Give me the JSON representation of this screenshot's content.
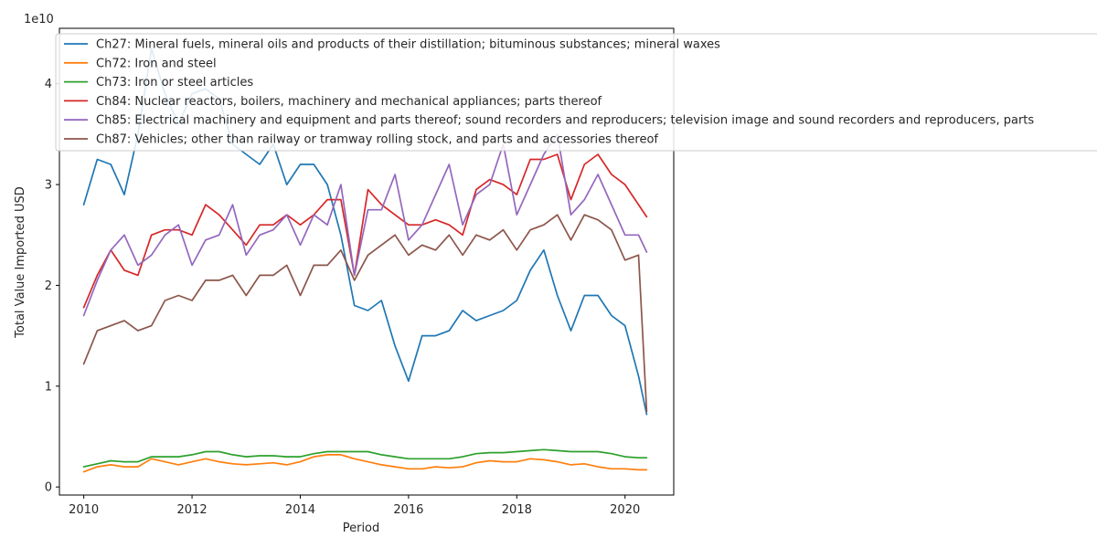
{
  "chart_data": {
    "type": "line",
    "title": "",
    "xlabel": "Period",
    "ylabel": "Total Value Imported USD",
    "y_scale_label": "1e10",
    "xlim": [
      2009.55,
      2020.9
    ],
    "ylim": [
      -0.08,
      4.55
    ],
    "x_ticks": [
      2010,
      2012,
      2014,
      2016,
      2018,
      2020
    ],
    "x_tick_labels": [
      "2010",
      "2012",
      "2014",
      "2016",
      "2018",
      "2020"
    ],
    "y_ticks": [
      0,
      1,
      2,
      3,
      4
    ],
    "y_tick_labels": [
      "0",
      "1",
      "2",
      "3",
      "4"
    ],
    "grid": false,
    "legend_position": "upper-left",
    "series": [
      {
        "name": "Ch27: Mineral fuels, mineral oils and products of their distillation; bituminous substances; mineral waxes",
        "color": "#1f77b4",
        "x": [
          2010.0,
          2010.25,
          2010.5,
          2010.75,
          2011.0,
          2011.25,
          2011.5,
          2011.75,
          2012.0,
          2012.25,
          2012.5,
          2012.75,
          2013.0,
          2013.25,
          2013.5,
          2013.75,
          2014.0,
          2014.25,
          2014.5,
          2014.75,
          2015.0,
          2015.25,
          2015.5,
          2015.75,
          2016.0,
          2016.25,
          2016.5,
          2016.75,
          2017.0,
          2017.25,
          2017.5,
          2017.75,
          2018.0,
          2018.25,
          2018.5,
          2018.75,
          2019.0,
          2019.25,
          2019.5,
          2019.75,
          2020.0,
          2020.25,
          2020.4
        ],
        "values": [
          2.8,
          3.25,
          3.2,
          2.9,
          3.5,
          4.35,
          3.9,
          3.6,
          3.9,
          3.95,
          3.85,
          3.4,
          3.3,
          3.2,
          3.4,
          3.0,
          3.2,
          3.2,
          3.0,
          2.5,
          1.8,
          1.75,
          1.85,
          1.4,
          1.05,
          1.5,
          1.5,
          1.55,
          1.75,
          1.65,
          1.7,
          1.75,
          1.85,
          2.15,
          2.35,
          1.9,
          1.55,
          1.9,
          1.9,
          1.7,
          1.6,
          1.1,
          0.72
        ]
      },
      {
        "name": "Ch72: Iron and steel",
        "color": "#ff7f0e",
        "x": [
          2010.0,
          2010.25,
          2010.5,
          2010.75,
          2011.0,
          2011.25,
          2011.5,
          2011.75,
          2012.0,
          2012.25,
          2012.5,
          2012.75,
          2013.0,
          2013.25,
          2013.5,
          2013.75,
          2014.0,
          2014.25,
          2014.5,
          2014.75,
          2015.0,
          2015.25,
          2015.5,
          2015.75,
          2016.0,
          2016.25,
          2016.5,
          2016.75,
          2017.0,
          2017.25,
          2017.5,
          2017.75,
          2018.0,
          2018.25,
          2018.5,
          2018.75,
          2019.0,
          2019.25,
          2019.5,
          2019.75,
          2020.0,
          2020.25,
          2020.4
        ],
        "values": [
          0.15,
          0.2,
          0.22,
          0.2,
          0.2,
          0.28,
          0.25,
          0.22,
          0.25,
          0.28,
          0.25,
          0.23,
          0.22,
          0.23,
          0.24,
          0.22,
          0.25,
          0.3,
          0.32,
          0.32,
          0.28,
          0.25,
          0.22,
          0.2,
          0.18,
          0.18,
          0.2,
          0.19,
          0.2,
          0.24,
          0.26,
          0.25,
          0.25,
          0.28,
          0.27,
          0.25,
          0.22,
          0.23,
          0.2,
          0.18,
          0.18,
          0.17,
          0.17
        ]
      },
      {
        "name": "Ch73: Iron or steel articles",
        "color": "#2ca02c",
        "x": [
          2010.0,
          2010.25,
          2010.5,
          2010.75,
          2011.0,
          2011.25,
          2011.5,
          2011.75,
          2012.0,
          2012.25,
          2012.5,
          2012.75,
          2013.0,
          2013.25,
          2013.5,
          2013.75,
          2014.0,
          2014.25,
          2014.5,
          2014.75,
          2015.0,
          2015.25,
          2015.5,
          2015.75,
          2016.0,
          2016.25,
          2016.5,
          2016.75,
          2017.0,
          2017.25,
          2017.5,
          2017.75,
          2018.0,
          2018.25,
          2018.5,
          2018.75,
          2019.0,
          2019.25,
          2019.5,
          2019.75,
          2020.0,
          2020.25,
          2020.4
        ],
        "values": [
          0.2,
          0.23,
          0.26,
          0.25,
          0.25,
          0.3,
          0.3,
          0.3,
          0.32,
          0.35,
          0.35,
          0.32,
          0.3,
          0.31,
          0.31,
          0.3,
          0.3,
          0.33,
          0.35,
          0.35,
          0.35,
          0.35,
          0.32,
          0.3,
          0.28,
          0.28,
          0.28,
          0.28,
          0.3,
          0.33,
          0.34,
          0.34,
          0.35,
          0.36,
          0.37,
          0.36,
          0.35,
          0.35,
          0.35,
          0.33,
          0.3,
          0.29,
          0.29
        ]
      },
      {
        "name": "Ch84: Nuclear reactors, boilers, machinery and mechanical appliances; parts thereof",
        "color": "#d62728",
        "x": [
          2010.0,
          2010.25,
          2010.5,
          2010.75,
          2011.0,
          2011.25,
          2011.5,
          2011.75,
          2012.0,
          2012.25,
          2012.5,
          2012.75,
          2013.0,
          2013.25,
          2013.5,
          2013.75,
          2014.0,
          2014.25,
          2014.5,
          2014.75,
          2015.0,
          2015.25,
          2015.5,
          2015.75,
          2016.0,
          2016.25,
          2016.5,
          2016.75,
          2017.0,
          2017.25,
          2017.5,
          2017.75,
          2018.0,
          2018.25,
          2018.5,
          2018.75,
          2019.0,
          2019.25,
          2019.5,
          2019.75,
          2020.0,
          2020.25,
          2020.4
        ],
        "values": [
          1.78,
          2.1,
          2.35,
          2.15,
          2.1,
          2.5,
          2.55,
          2.55,
          2.5,
          2.8,
          2.7,
          2.55,
          2.4,
          2.6,
          2.6,
          2.7,
          2.6,
          2.7,
          2.85,
          2.85,
          2.1,
          2.95,
          2.8,
          2.7,
          2.6,
          2.6,
          2.65,
          2.6,
          2.5,
          2.95,
          3.05,
          3.0,
          2.9,
          3.25,
          3.25,
          3.3,
          2.85,
          3.2,
          3.3,
          3.1,
          3.0,
          2.8,
          2.68
        ]
      },
      {
        "name": "Ch85: Electrical machinery and equipment and parts thereof; sound recorders and reproducers; television image and sound recorders and reproducers, parts",
        "color": "#9467bd",
        "x": [
          2010.0,
          2010.25,
          2010.5,
          2010.75,
          2011.0,
          2011.25,
          2011.5,
          2011.75,
          2012.0,
          2012.25,
          2012.5,
          2012.75,
          2013.0,
          2013.25,
          2013.5,
          2013.75,
          2014.0,
          2014.25,
          2014.5,
          2014.75,
          2015.0,
          2015.25,
          2015.5,
          2015.75,
          2016.0,
          2016.25,
          2016.5,
          2016.75,
          2017.0,
          2017.25,
          2017.5,
          2017.75,
          2018.0,
          2018.25,
          2018.5,
          2018.75,
          2019.0,
          2019.25,
          2019.5,
          2019.75,
          2020.0,
          2020.25,
          2020.4
        ],
        "values": [
          1.7,
          2.05,
          2.35,
          2.5,
          2.2,
          2.3,
          2.5,
          2.6,
          2.2,
          2.45,
          2.5,
          2.8,
          2.3,
          2.5,
          2.55,
          2.7,
          2.4,
          2.7,
          2.6,
          3.0,
          2.1,
          2.75,
          2.75,
          3.1,
          2.45,
          2.6,
          2.9,
          3.2,
          2.6,
          2.9,
          3.0,
          3.4,
          2.7,
          3.0,
          3.3,
          3.5,
          2.7,
          2.85,
          3.1,
          2.8,
          2.5,
          2.5,
          2.33
        ]
      },
      {
        "name": "Ch87: Vehicles; other than railway or tramway rolling stock, and parts and accessories thereof",
        "color": "#8c564b",
        "x": [
          2010.0,
          2010.25,
          2010.5,
          2010.75,
          2011.0,
          2011.25,
          2011.5,
          2011.75,
          2012.0,
          2012.25,
          2012.5,
          2012.75,
          2013.0,
          2013.25,
          2013.5,
          2013.75,
          2014.0,
          2014.25,
          2014.5,
          2014.75,
          2015.0,
          2015.25,
          2015.5,
          2015.75,
          2016.0,
          2016.25,
          2016.5,
          2016.75,
          2017.0,
          2017.25,
          2017.5,
          2017.75,
          2018.0,
          2018.25,
          2018.5,
          2018.75,
          2019.0,
          2019.25,
          2019.5,
          2019.75,
          2020.0,
          2020.25,
          2020.4
        ],
        "values": [
          1.22,
          1.55,
          1.6,
          1.65,
          1.55,
          1.6,
          1.85,
          1.9,
          1.85,
          2.05,
          2.05,
          2.1,
          1.9,
          2.1,
          2.1,
          2.2,
          1.9,
          2.2,
          2.2,
          2.35,
          2.05,
          2.3,
          2.4,
          2.5,
          2.3,
          2.4,
          2.35,
          2.5,
          2.3,
          2.5,
          2.45,
          2.55,
          2.35,
          2.55,
          2.6,
          2.7,
          2.45,
          2.7,
          2.65,
          2.55,
          2.25,
          2.3,
          0.75
        ]
      }
    ]
  }
}
